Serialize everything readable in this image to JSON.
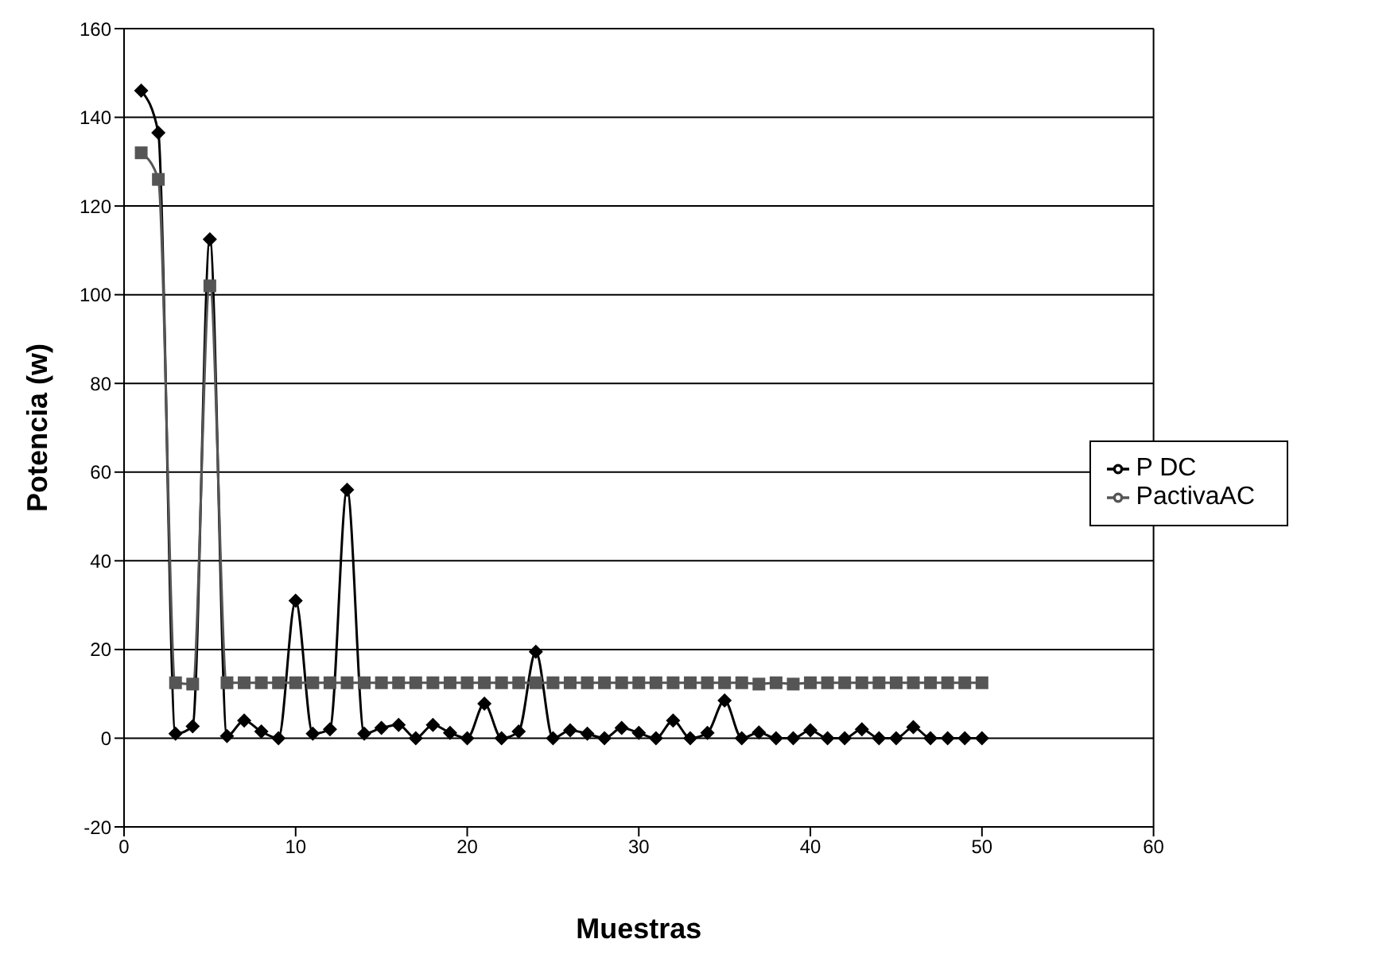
{
  "chart_data": {
    "type": "line",
    "xlabel": "Muestras",
    "ylabel": "Potencia (w)",
    "x": [
      1,
      2,
      3,
      4,
      5,
      6,
      7,
      8,
      9,
      10,
      11,
      12,
      13,
      14,
      15,
      16,
      17,
      18,
      19,
      20,
      21,
      22,
      23,
      24,
      25,
      26,
      27,
      28,
      29,
      30,
      31,
      32,
      33,
      34,
      35,
      36,
      37,
      38,
      39,
      40,
      41,
      42,
      43,
      44,
      45,
      46,
      47,
      48,
      49,
      50
    ],
    "series": [
      {
        "name": "P DC",
        "color": "#000000",
        "marker": "diamond",
        "values": [
          146,
          136.5,
          1,
          2.7,
          112.5,
          0.5,
          4,
          1.5,
          0,
          31,
          1,
          2,
          56,
          1,
          2.3,
          3,
          0,
          3,
          1.2,
          0,
          7.8,
          0,
          1.5,
          19.5,
          0,
          1.8,
          1,
          0,
          2.3,
          1.2,
          0,
          4,
          0,
          1.2,
          8.5,
          0,
          1.3,
          0,
          0,
          1.8,
          0,
          0,
          2,
          0,
          0,
          2.5,
          0,
          0,
          0,
          0
        ]
      },
      {
        "name": "PactivaAC",
        "color": "#555555",
        "marker": "square",
        "values": [
          132,
          126,
          12.5,
          12.2,
          102,
          12.5,
          12.5,
          12.5,
          12.5,
          12.5,
          12.5,
          12.5,
          12.5,
          12.5,
          12.5,
          12.5,
          12.5,
          12.5,
          12.5,
          12.5,
          12.5,
          12.5,
          12.5,
          12.5,
          12.5,
          12.5,
          12.5,
          12.5,
          12.5,
          12.5,
          12.5,
          12.5,
          12.5,
          12.5,
          12.5,
          12.5,
          12.2,
          12.5,
          12.2,
          12.5,
          12.5,
          12.5,
          12.5,
          12.5,
          12.5,
          12.5,
          12.5,
          12.5,
          12.5,
          12.5
        ]
      }
    ],
    "xlim": [
      0,
      60
    ],
    "xticks": [
      0,
      10,
      20,
      30,
      40,
      50,
      60
    ],
    "ylim": [
      -20,
      160
    ],
    "yticks": [
      -20,
      0,
      20,
      40,
      60,
      80,
      100,
      120,
      140,
      160
    ],
    "grid": "y",
    "legend": "right",
    "line_style": "solid"
  }
}
